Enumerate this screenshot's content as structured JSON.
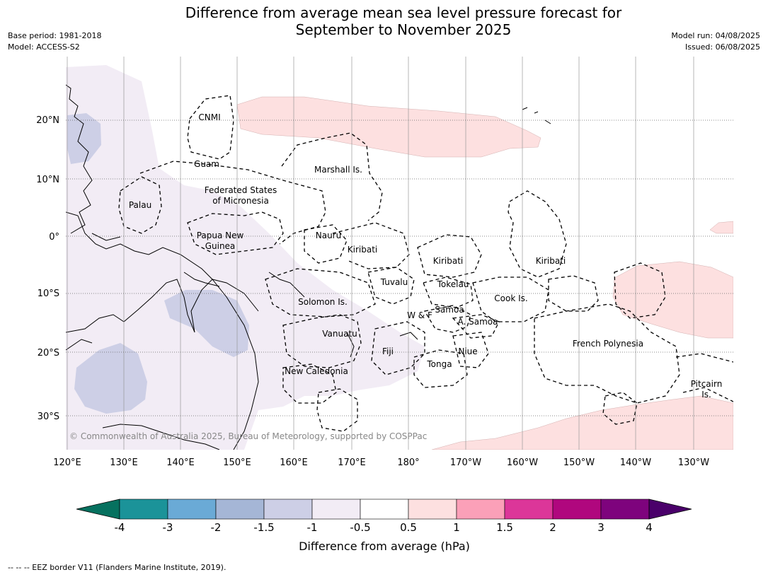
{
  "title_line1": "Difference from average mean sea level pressure forecast for",
  "title_line2": "September to November 2025",
  "meta_left": [
    "Base period: 1981-2018",
    "Model: ACCESS-S2"
  ],
  "meta_right": [
    "Model run: 04/08/2025",
    "Issued: 06/08/2025"
  ],
  "lat_labels": [
    "20°N",
    "10°N",
    "0°",
    "10°S",
    "20°S",
    "30°S"
  ],
  "lon_labels": [
    "120°E",
    "130°E",
    "140°E",
    "150°E",
    "160°E",
    "170°E",
    "180°",
    "170°W",
    "160°W",
    "150°W",
    "140°W",
    "130°W"
  ],
  "places": [
    {
      "text": "CNMI"
    },
    {
      "text": "Guam"
    },
    {
      "text": "Marshall Is."
    },
    {
      "text": "Federated States"
    },
    {
      "text": "of Micronesia"
    },
    {
      "text": "Palau"
    },
    {
      "text": "Papua New"
    },
    {
      "text": "Guinea"
    },
    {
      "text": "Nauru"
    },
    {
      "text": "Kiribati"
    },
    {
      "text": "Kiribati"
    },
    {
      "text": "Kiribati"
    },
    {
      "text": "Tuvalu"
    },
    {
      "text": "Tokelau"
    },
    {
      "text": "Cook Is."
    },
    {
      "text": "Solomon Is."
    },
    {
      "text": "Samoa"
    },
    {
      "text": "W & F"
    },
    {
      "text": "A. Samoa"
    },
    {
      "text": "Vanuatu"
    },
    {
      "text": "Fiji"
    },
    {
      "text": "Niue"
    },
    {
      "text": "French Polynesia"
    },
    {
      "text": "Tonga"
    },
    {
      "text": "New Caledonia"
    },
    {
      "text": "Pitcairn"
    },
    {
      "text": "Is."
    }
  ],
  "copyright": "© Commonwealth of Australia 2025, Bureau of Meteorology, supported by COSPPac",
  "colorbar": {
    "ticks": [
      "-4",
      "-3",
      "-2",
      "-1.5",
      "-1",
      "-0.5",
      "0.5",
      "1",
      "1.5",
      "2",
      "3",
      "4"
    ],
    "colors": [
      "#1b9399",
      "#6aaad6",
      "#a5b6d6",
      "#cdcfe6",
      "#f2ecf5",
      "#ffffff",
      "#fde0e0",
      "#fba0b8",
      "#dc3699",
      "#b0077e",
      "#7e037d"
    ],
    "extend_low": "#06715f",
    "extend_high": "#4a006a",
    "label": "Difference from average (hPa)"
  },
  "footnote": "-- -- -- EEZ border V11 (Flanders Marine Institute, 2019)."
}
